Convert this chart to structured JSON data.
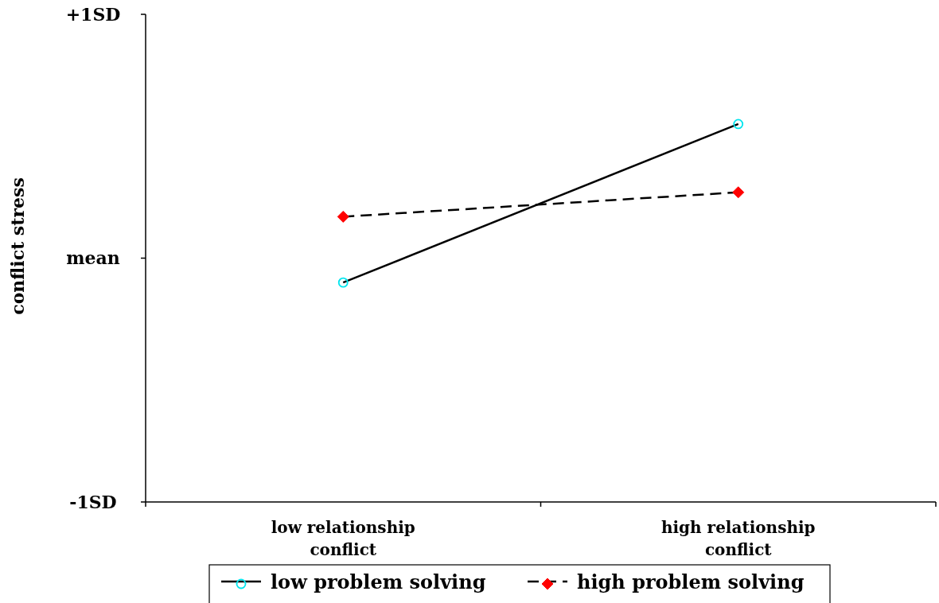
{
  "chart_data": {
    "type": "line",
    "ylabel": "conflict stress",
    "categories": [
      "low relationship conflict",
      "high relationship conflict"
    ],
    "ylim": [
      -1,
      1
    ],
    "yticks": [
      {
        "value": -1,
        "label": "-1SD"
      },
      {
        "value": 0,
        "label": "mean"
      },
      {
        "value": 1,
        "label": "+1SD"
      }
    ],
    "series": [
      {
        "name": "low problem solving",
        "color": "#000000",
        "marker": "circle",
        "line_style": "solid",
        "values": [
          -0.1,
          0.55
        ]
      },
      {
        "name": "high problem solving",
        "color": "#000000",
        "marker": "diamond",
        "line_style": "dashed",
        "values": [
          0.17,
          0.27
        ]
      }
    ],
    "grid": false,
    "legend": "bottom"
  }
}
